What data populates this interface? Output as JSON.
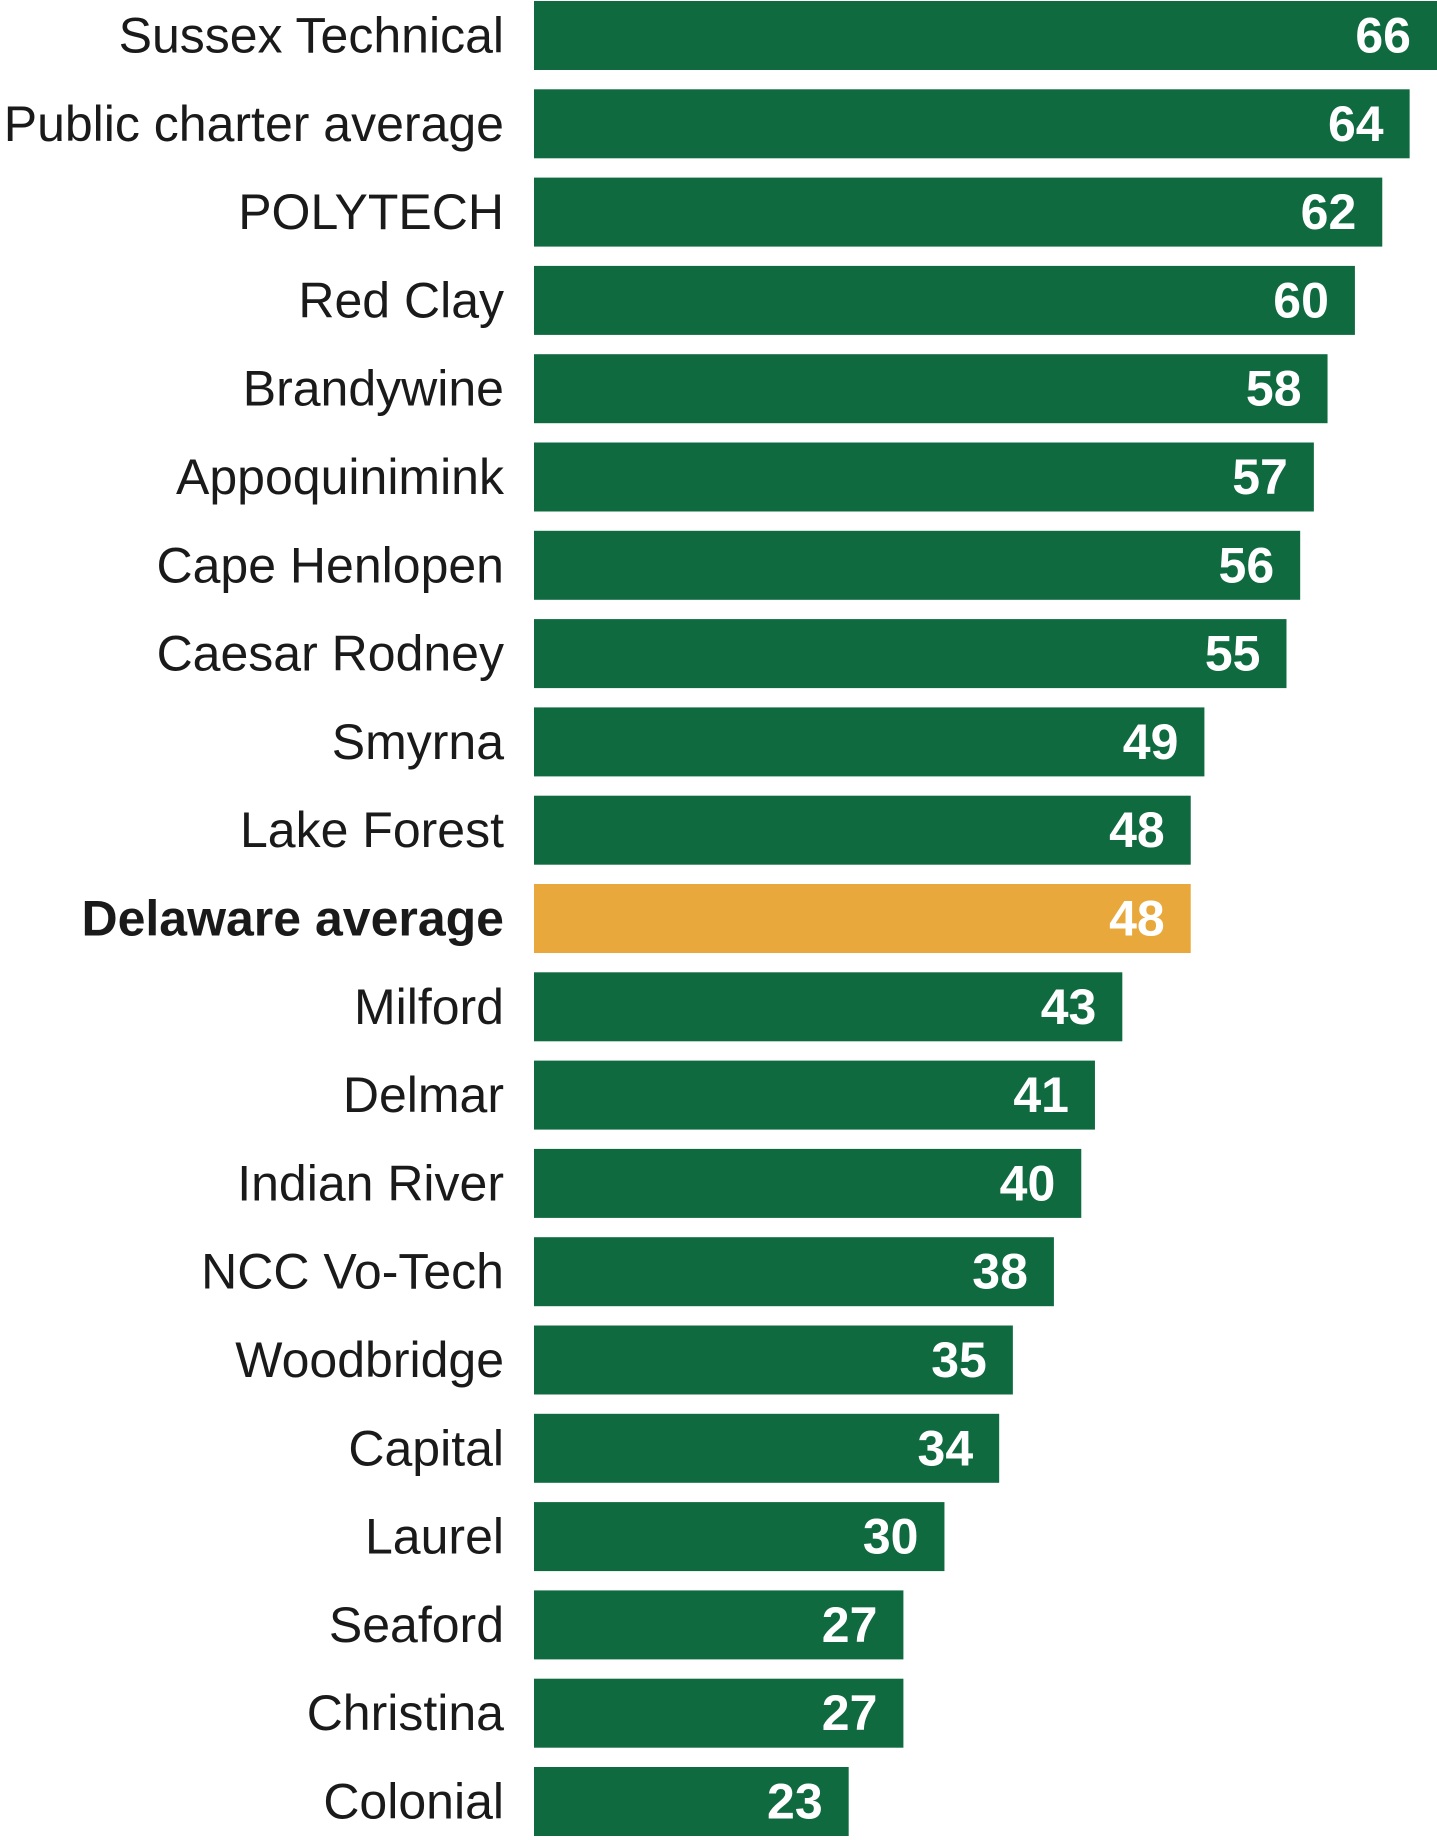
{
  "chart_data": {
    "type": "bar",
    "orientation": "horizontal",
    "categories": [
      "Sussex Technical",
      "Public charter average",
      "POLYTECH",
      "Red Clay",
      "Brandywine",
      "Appoquinimink",
      "Cape Henlopen",
      "Caesar Rodney",
      "Smyrna",
      "Lake Forest",
      "Delaware average",
      "Milford",
      "Delmar",
      "Indian River",
      "NCC Vo-Tech",
      "Woodbridge",
      "Capital",
      "Laurel",
      "Seaford",
      "Christina",
      "Colonial"
    ],
    "values": [
      66,
      64,
      62,
      60,
      58,
      57,
      56,
      55,
      49,
      48,
      48,
      43,
      41,
      40,
      38,
      35,
      34,
      30,
      27,
      27,
      23
    ],
    "data_labels": [
      "66",
      "64",
      "62",
      "60",
      "58",
      "57",
      "56",
      "55",
      "49",
      "48",
      "48",
      "43",
      "41",
      "40",
      "38",
      "35",
      "34",
      "30",
      "27",
      "27",
      "23"
    ],
    "highlight_category": "Delaware average",
    "title": "",
    "xlabel": "",
    "ylabel": "",
    "xlim": [
      0,
      66
    ],
    "grid": false,
    "legend": "none",
    "colors": {
      "bar": "#0f6b3f",
      "highlight": "#e8a83b",
      "value_text": "#ffffff",
      "category_text": "#1a1a1a"
    }
  }
}
